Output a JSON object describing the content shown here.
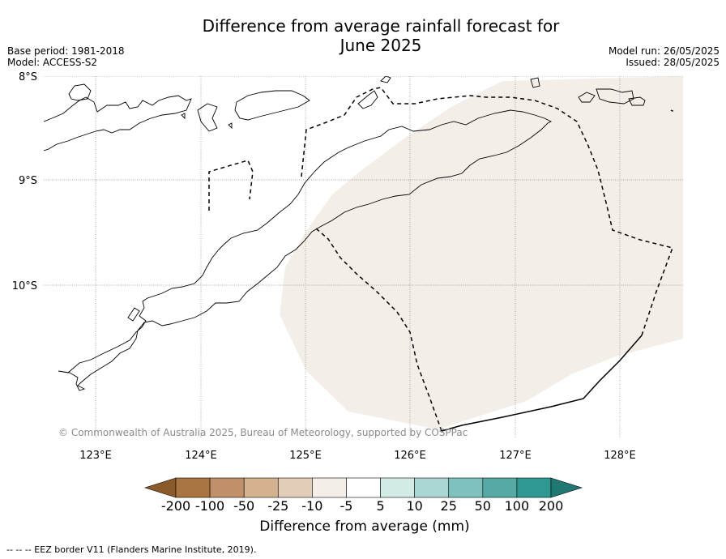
{
  "title": {
    "line1": "Difference from average rainfall forecast for",
    "line2": "June 2025"
  },
  "meta": {
    "base_period": "Base period: 1981-2018",
    "model": "Model: ACCESS-S2",
    "model_run": "Model run: 26/05/2025",
    "issued": "Issued: 28/05/2025"
  },
  "map": {
    "lat_labels": [
      "8°S",
      "9°S",
      "10°S"
    ],
    "lon_labels": [
      "123°E",
      "124°E",
      "125°E",
      "126°E",
      "127°E",
      "128°E"
    ],
    "copyright": "© Commonwealth of Australia 2025, Bureau of Meteorology, supported by COSPPac",
    "forecast_region_category": "-10 to -5",
    "forecast_region_color": "#f4eee9",
    "coast_color": "#000000",
    "eez_style": "dashed"
  },
  "colorbar": {
    "labels": [
      "-200",
      "-100",
      "-50",
      "-25",
      "-10",
      "-5",
      "5",
      "10",
      "25",
      "50",
      "100",
      "200"
    ],
    "colors": [
      "#8b5a2b",
      "#a97540",
      "#c0906a",
      "#d4b290",
      "#e3cdb8",
      "#f4eee9",
      "#ffffff",
      "#d3ebe7",
      "#aad7d3",
      "#7fc1bc",
      "#56a9a5",
      "#2f9892",
      "#1f7873"
    ],
    "title": "Difference from average (mm)"
  },
  "footnote": "--  --  -- EEZ border V11 (Flanders Marine Institute, 2019)."
}
